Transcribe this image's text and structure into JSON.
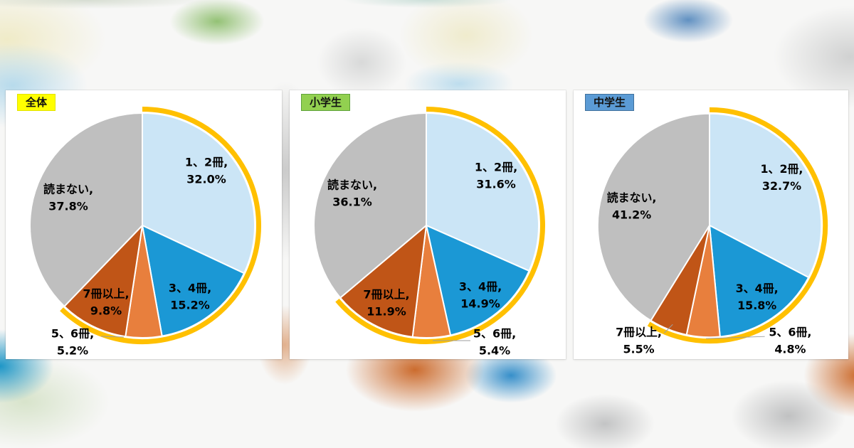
{
  "chart_data": [
    {
      "type": "pie",
      "title": "全体",
      "title_style": {
        "bg": "#ffff00",
        "border": "#e3e300"
      },
      "value_suffix": "%",
      "rotation": "clockwise-from-top",
      "highlight_arc": {
        "color": "#ffc000",
        "covers": "all-slices-except-読まない",
        "sweep_pct": 62.2
      },
      "slices": [
        {
          "label": "1、2冊",
          "value": 32.0,
          "value_text": "32.0%",
          "color": "#cbe5f6",
          "placement": "inside",
          "offset": [
            90,
            -77
          ]
        },
        {
          "label": "3、4冊",
          "value": 15.2,
          "value_text": "15.2%",
          "color": "#1b98d5",
          "placement": "inside",
          "offset": [
            67,
            100
          ]
        },
        {
          "label": "5、6冊",
          "value": 5.2,
          "value_text": "5.2%",
          "color": "#e87f3d",
          "placement": "callout",
          "offset": [
            -98,
            164
          ],
          "leader": [
            [
              -26,
              157
            ],
            [
              -58,
              156
            ]
          ]
        },
        {
          "label": "7冊以上",
          "value": 9.8,
          "value_text": "9.8%",
          "color": "#c05517",
          "placement": "inside",
          "offset": [
            -51,
            108
          ]
        },
        {
          "label": "読まない",
          "value": 37.8,
          "value_text": "37.8%",
          "color": "#bfbfbf",
          "placement": "inside",
          "offset": [
            -104,
            -39
          ]
        }
      ]
    },
    {
      "type": "pie",
      "title": "小学生",
      "title_style": {
        "bg": "#92d050",
        "border": "#5fa33b"
      },
      "value_suffix": "%",
      "rotation": "clockwise-from-top",
      "highlight_arc": {
        "color": "#ffc000",
        "covers": "all-slices-except-読まない",
        "sweep_pct": 63.8
      },
      "slices": [
        {
          "label": "1、2冊",
          "value": 31.6,
          "value_text": "31.6%",
          "color": "#cbe5f6",
          "placement": "inside",
          "offset": [
            98,
            -70
          ]
        },
        {
          "label": "3、4冊",
          "value": 14.9,
          "value_text": "14.9%",
          "color": "#1b98d5",
          "placement": "inside",
          "offset": [
            76,
            98
          ]
        },
        {
          "label": "5、6冊",
          "value": 5.4,
          "value_text": "5.4%",
          "color": "#e87f3d",
          "placement": "callout",
          "offset": [
            96,
            164
          ],
          "leader": [
            [
              9,
              162
            ],
            [
              62,
              162
            ]
          ]
        },
        {
          "label": "7冊以上",
          "value": 11.9,
          "value_text": "11.9%",
          "color": "#c05517",
          "placement": "inside",
          "offset": [
            -56,
            109
          ]
        },
        {
          "label": "読まない",
          "value": 36.1,
          "value_text": "36.1%",
          "color": "#bfbfbf",
          "placement": "inside",
          "offset": [
            -104,
            -45
          ]
        }
      ]
    },
    {
      "type": "pie",
      "title": "中学生",
      "title_style": {
        "bg": "#5b9bd5",
        "border": "#41719c"
      },
      "value_suffix": "%",
      "rotation": "clockwise-from-top",
      "highlight_arc": {
        "color": "#ffc000",
        "covers": "all-slices-except-読まない",
        "sweep_pct": 58.8
      },
      "slices": [
        {
          "label": "1、2冊",
          "value": 32.7,
          "value_text": "32.7%",
          "color": "#cbe5f6",
          "placement": "inside",
          "offset": [
            102,
            -68
          ]
        },
        {
          "label": "3、4冊",
          "value": 15.8,
          "value_text": "15.8%",
          "color": "#1b98d5",
          "placement": "inside",
          "offset": [
            67,
            101
          ]
        },
        {
          "label": "5、6冊",
          "value": 4.8,
          "value_text": "4.8%",
          "color": "#e87f3d",
          "placement": "callout",
          "offset": [
            114,
            163
          ],
          "leader": [
            [
              -5,
              160
            ],
            [
              78,
              157
            ]
          ]
        },
        {
          "label": "7冊以上",
          "value": 5.5,
          "value_text": "5.5%",
          "color": "#c05517",
          "placement": "callout",
          "offset": [
            -100,
            163
          ],
          "leader": [
            [
              -52,
              140
            ],
            [
              -64,
              152
            ]
          ]
        },
        {
          "label": "読まない",
          "value": 41.2,
          "value_text": "41.2%",
          "color": "#bfbfbf",
          "placement": "inside",
          "offset": [
            -110,
            -27
          ]
        }
      ]
    }
  ]
}
